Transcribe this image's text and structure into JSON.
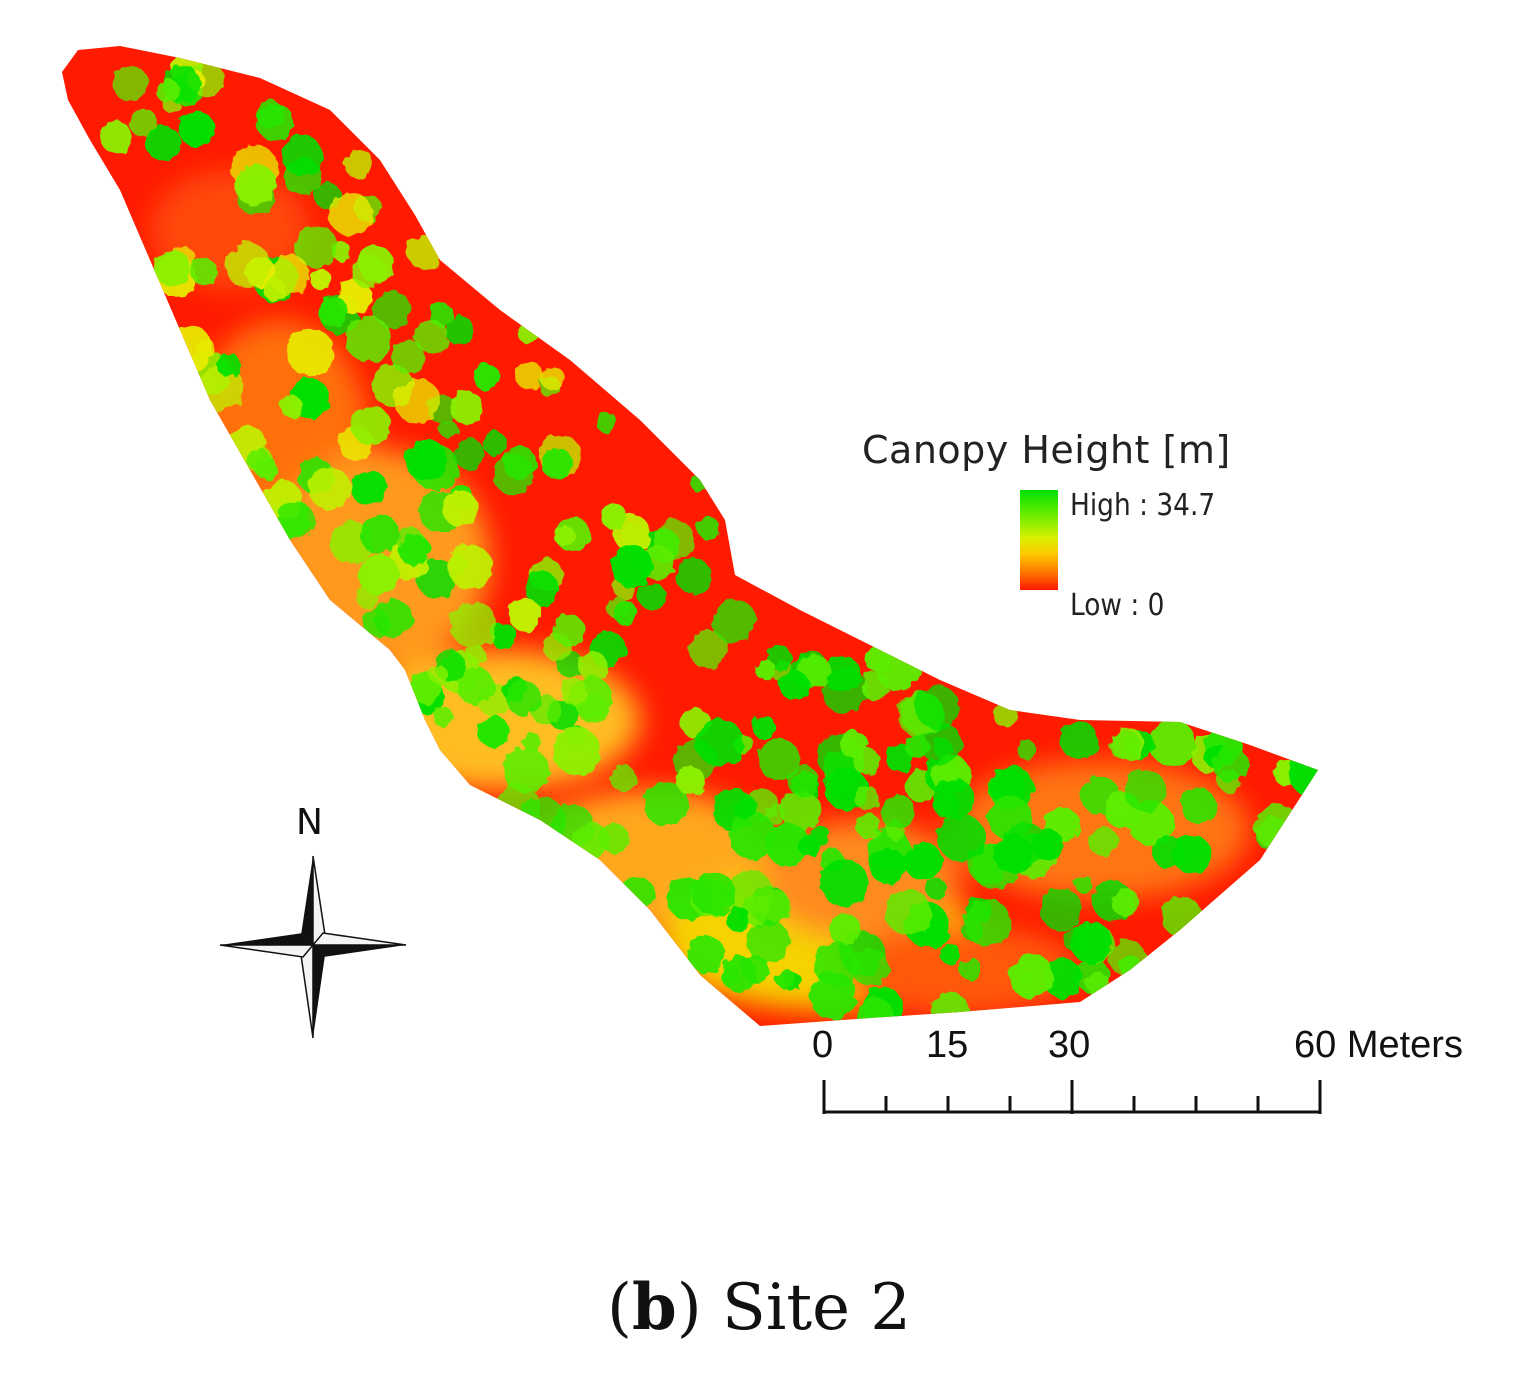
{
  "legend": {
    "title": "Canopy Height [m]",
    "high_label": "High : 34.7",
    "low_label": "Low : 0",
    "high_value": 34.7,
    "low_value": 0,
    "unit": "m",
    "ramp_colors": [
      "#00e000",
      "#d8f000",
      "#ffc800",
      "#ff1800"
    ]
  },
  "scale_bar": {
    "ticks": [
      "0",
      "15",
      "30",
      "60 Meters"
    ],
    "values": [
      0,
      15,
      30,
      60
    ],
    "unit": "Meters"
  },
  "north_arrow": {
    "label": "N",
    "icon": "compass-rose-icon"
  },
  "caption": {
    "letter": "b",
    "text": "Site 2"
  },
  "colors": {
    "low": "#ff1a00",
    "mid": "#f5e800",
    "high": "#00e000"
  }
}
